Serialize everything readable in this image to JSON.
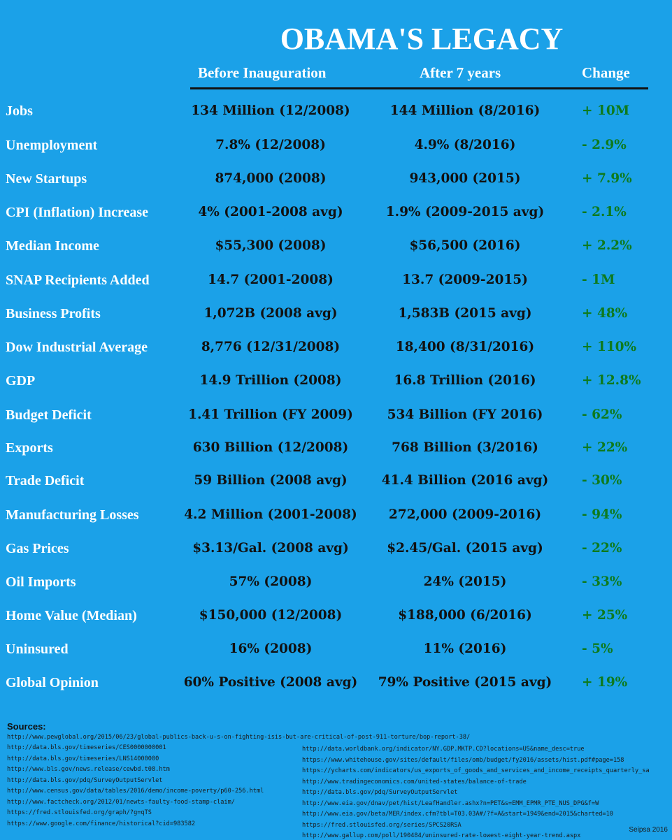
{
  "title": "OBAMA'S LEGACY",
  "headers": {
    "before": "Before Inauguration",
    "after": "After 7 years",
    "change": "Change"
  },
  "rows": [
    {
      "label": "Jobs",
      "before": "134 Million (12/2008)",
      "after": "144 Million  (8/2016)",
      "change": "+ 10M"
    },
    {
      "label": "Unemployment",
      "before": "7.8% (12/2008)",
      "after": "4.9% (8/2016)",
      "change": "- 2.9%"
    },
    {
      "label": "New Startups",
      "before": "874,000 (2008)",
      "after": "943,000 (2015)",
      "change": "+ 7.9%"
    },
    {
      "label": "CPI (Inflation) Increase",
      "before": "4% (2001-2008 avg)",
      "after": "1.9% (2009-2015 avg)",
      "change": "- 2.1%"
    },
    {
      "label": "Median Income",
      "before": "$55,300 (2008)",
      "after": "$56,500 (2016)",
      "change": "+ 2.2%"
    },
    {
      "label": "SNAP Recipients Added",
      "before": "14.7 (2001-2008)",
      "after": "13.7 (2009-2015)",
      "change": "- 1M"
    },
    {
      "label": "Business Profits",
      "before": "1,072B (2008 avg)",
      "after": "1,583B (2015 avg)",
      "change": "+ 48%"
    },
    {
      "label": "Dow Industrial Average",
      "before": "8,776 (12/31/2008)",
      "after": "18,400 (8/31/2016)",
      "change": "+ 110%"
    },
    {
      "label": "GDP",
      "before": "14.9 Trillion (2008)",
      "after": "16.8 Trillion (2016)",
      "change": "+ 12.8%"
    },
    {
      "label": "Budget Deficit",
      "before": "1.41 Trillion (FY 2009)",
      "after": "534 Billion (FY 2016)",
      "change": "- 62%"
    },
    {
      "label": "Exports",
      "before": "630 Billion  (12/2008)",
      "after": "768 Billion (3/2016)",
      "change": "+ 22%"
    },
    {
      "label": "Trade Deficit",
      "before": "59 Billion (2008 avg)",
      "after": "41.4 Billion (2016 avg)",
      "change": "- 30%"
    },
    {
      "label": "Manufacturing Losses",
      "before": "4.2 Million (2001-2008)",
      "after": "272,000 (2009-2016)",
      "change": "- 94%"
    },
    {
      "label": "Gas Prices",
      "before": "$3.13/Gal. (2008 avg)",
      "after": "$2.45/Gal. (2015 avg)",
      "change": "- 22%"
    },
    {
      "label": "Oil Imports",
      "before": "57% (2008)",
      "after": "24% (2015)",
      "change": "- 33%"
    },
    {
      "label": "Home Value (Median)",
      "before": "$150,000 (12/2008)",
      "after": "$188,000 (6/2016)",
      "change": "+ 25%"
    },
    {
      "label": "Uninsured",
      "before": "16% (2008)",
      "after": "11% (2016)",
      "change": "- 5%"
    },
    {
      "label": "Global Opinion",
      "before": "60% Positive (2008 avg)",
      "after": "79% Positive (2015 avg)",
      "change": "+ 19%"
    }
  ],
  "sources": {
    "title": "Sources:",
    "top": "http://www.pewglobal.org/2015/06/23/global-publics-back-u-s-on-fighting-isis-but-are-critical-of-post-911-torture/bop-report-38/",
    "left": [
      "http://data.bls.gov/timeseries/CES0000000001",
      "http://data.bls.gov/timeseries/LNS14000000",
      "http://www.bls.gov/news.release/cewbd.t08.htm",
      "http://data.bls.gov/pdq/SurveyOutputServlet",
      "http://www.census.gov/data/tables/2016/demo/income-poverty/p60-256.html",
      "http://www.factcheck.org/2012/01/newts-faulty-food-stamp-claim/",
      "https://fred.stlouisfed.org/graph/?g=qTS",
      "https://www.google.com/finance/historical?cid=983582"
    ],
    "right": [
      "http://data.worldbank.org/indicator/NY.GDP.MKTP.CD?locations=US&name_desc=true",
      "https://www.whitehouse.gov/sites/default/files/omb/budget/fy2016/assets/hist.pdf#page=158",
      "https://ycharts.com/indicators/us_exports_of_goods_and_services_and_income_receipts_quarterly_sa",
      "http://www.tradingeconomics.com/united-states/balance-of-trade",
      "http://data.bls.gov/pdq/SurveyOutputServlet",
      "http://www.eia.gov/dnav/pet/hist/LeafHandler.ashx?n=PET&s=EMM_EPMR_PTE_NUS_DPG&f=W",
      "http://www.eia.gov/beta/MER/index.cfm?tbl=T03.03A#/?f=A&start=1949&end=2015&charted=10",
      "https://fred.stlouisfed.org/series/SPCS20RSA",
      "http://www.gallup.com/poll/190484/uninsured-rate-lowest-eight-year-trend.aspx"
    ]
  },
  "credit": "Seipsa 2016",
  "colors": {
    "background": "#1ba1e8",
    "change_text": "#0e7a1d",
    "value_text": "#111111",
    "label_text": "#ffffff"
  }
}
